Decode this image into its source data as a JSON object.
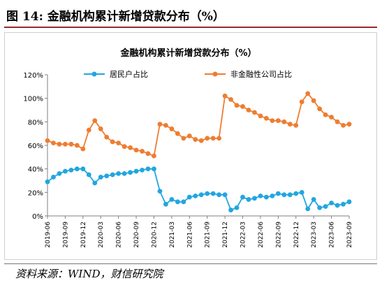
{
  "figure": {
    "label": "图 14:",
    "title": "金融机构累计新增贷款分布（%）",
    "source": "资料来源：WIND，财信研究院"
  },
  "chart_data": {
    "type": "line",
    "title": "金融机构累计新增贷款分布（%）",
    "xlabel": "",
    "ylabel": "",
    "ylim": [
      0,
      120
    ],
    "yticks": [
      "0%",
      "20%",
      "40%",
      "60%",
      "80%",
      "100%",
      "120%"
    ],
    "x_tick_labels": [
      "2019-06",
      "2019-09",
      "2019-12",
      "2020-03",
      "2020-06",
      "2020-09",
      "2020-12",
      "2021-03",
      "2021-06",
      "2021-09",
      "2021-12",
      "2022-03",
      "2022-06",
      "2022-09",
      "2022-12",
      "2023-03",
      "2023-06",
      "2023-09"
    ],
    "x": [
      "2019-06",
      "2019-07",
      "2019-08",
      "2019-09",
      "2019-10",
      "2019-11",
      "2019-12",
      "2020-01",
      "2020-02",
      "2020-03",
      "2020-04",
      "2020-05",
      "2020-06",
      "2020-07",
      "2020-08",
      "2020-09",
      "2020-10",
      "2020-11",
      "2020-12",
      "2021-01",
      "2021-02",
      "2021-03",
      "2021-04",
      "2021-05",
      "2021-06",
      "2021-07",
      "2021-08",
      "2021-09",
      "2021-10",
      "2021-11",
      "2021-12",
      "2022-01",
      "2022-02",
      "2022-03",
      "2022-04",
      "2022-05",
      "2022-06",
      "2022-07",
      "2022-08",
      "2022-09",
      "2022-10",
      "2022-11",
      "2022-12",
      "2023-01",
      "2023-02",
      "2023-03",
      "2023-04",
      "2023-05",
      "2023-06",
      "2023-07",
      "2023-08",
      "2023-09"
    ],
    "legend_position": "top",
    "grid": false,
    "series": [
      {
        "name": "居民户占比",
        "color": "#21a6e0",
        "values": [
          29,
          33,
          36,
          38,
          39,
          40,
          40,
          35,
          28,
          33,
          34,
          35,
          36,
          36,
          37,
          38,
          39,
          40,
          40,
          21,
          10,
          14,
          12,
          12,
          16,
          17,
          18,
          19,
          19,
          18,
          18,
          5,
          7,
          16,
          14,
          15,
          17,
          16,
          17,
          19,
          18,
          18,
          19,
          20,
          6,
          14,
          7,
          8,
          11,
          9,
          10,
          12
        ]
      },
      {
        "name": "非金融性公司占比",
        "color": "#ee7d31",
        "values": [
          64,
          62,
          61,
          61,
          61,
          60,
          57,
          73,
          81,
          74,
          67,
          63,
          62,
          59,
          58,
          56,
          55,
          53,
          51,
          78,
          77,
          74,
          70,
          66,
          68,
          65,
          64,
          66,
          66,
          66,
          102,
          99,
          94,
          93,
          90,
          88,
          85,
          83,
          81,
          81,
          80,
          78,
          77,
          97,
          104,
          98,
          91,
          86,
          84,
          80,
          77,
          78
        ]
      }
    ]
  },
  "colors": {
    "header_rule": "#9a2a2a",
    "axis": "#7f7f7f"
  }
}
